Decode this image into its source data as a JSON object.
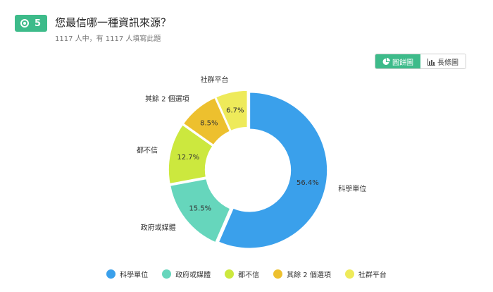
{
  "question": {
    "number": "5",
    "title": "您最信哪一種資訊來源？",
    "subtitle": "1117 人中，有 1117 人填寫此題"
  },
  "toggle": {
    "pie_label": "圓餅圖",
    "bar_label": "長條圖"
  },
  "chart_data": {
    "type": "pie",
    "donut": true,
    "categories": [
      "科學單位",
      "政府或媒體",
      "都不信",
      "其餘 2 個選項",
      "社群平台"
    ],
    "values": [
      56.4,
      15.5,
      12.7,
      8.5,
      6.7
    ],
    "value_labels": [
      "56.4%",
      "15.5%",
      "12.7%",
      "8.5%",
      "6.7%"
    ],
    "colors": [
      "#3aa0eb",
      "#66d6bc",
      "#cce83e",
      "#edc02e",
      "#eeea5a"
    ],
    "legend_position": "bottom"
  }
}
